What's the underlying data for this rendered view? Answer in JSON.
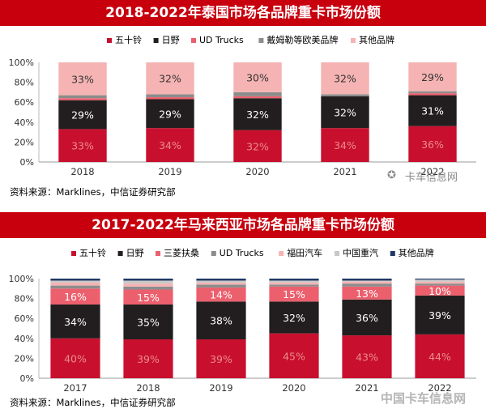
{
  "chart_data": [
    {
      "type": "bar",
      "stacked": true,
      "title": "2018-2022年泰国市场各品牌重卡市场份额",
      "categories": [
        "2018",
        "2019",
        "2020",
        "2021",
        "2022"
      ],
      "ylim": [
        0,
        100
      ],
      "yticks": [
        "0%",
        "20%",
        "40%",
        "60%",
        "80%",
        "100%"
      ],
      "legend_position": "top",
      "series": [
        {
          "name": "五十铃",
          "color": "#c8102e",
          "values": [
            33,
            34,
            32,
            34,
            36
          ],
          "labels": [
            "33%",
            "34%",
            "32%",
            "34%",
            "36%"
          ],
          "label_color": "#ec8a8f"
        },
        {
          "name": "日野",
          "color": "#221e1f",
          "values": [
            29,
            29,
            32,
            32,
            31
          ],
          "labels": [
            "29%",
            "29%",
            "32%",
            "32%",
            "31%"
          ],
          "label_color": "#ffffff"
        },
        {
          "name": "UD Trucks",
          "color": "#ec5f6d",
          "values": [
            2,
            2,
            2,
            0,
            2
          ],
          "labels": [],
          "label_color": "#222222"
        },
        {
          "name": "戴姆勒等欧美品牌",
          "color": "#8c8c8c",
          "values": [
            3,
            3,
            4,
            2,
            2
          ],
          "labels": [],
          "label_color": "#222222"
        },
        {
          "name": "其他品牌",
          "color": "#f5b3b3",
          "values": [
            33,
            32,
            30,
            32,
            29
          ],
          "labels": [
            "33%",
            "32%",
            "30%",
            "32%",
            "29%"
          ],
          "label_color": "#333333"
        }
      ],
      "source": "资料来源：Marklines，中信证券研究部"
    },
    {
      "type": "bar",
      "stacked": true,
      "title": "2017-2022年马来西亚市场各品牌重卡市场份额",
      "categories": [
        "2017",
        "2018",
        "2019",
        "2020",
        "2021",
        "2022"
      ],
      "ylim": [
        0,
        100
      ],
      "yticks": [
        "0%",
        "20%",
        "40%",
        "60%",
        "80%",
        "100%"
      ],
      "legend_position": "top",
      "series": [
        {
          "name": "五十铃",
          "color": "#c8102e",
          "values": [
            40,
            39,
            39,
            45,
            43,
            44
          ],
          "labels": [
            "40%",
            "39%",
            "39%",
            "45%",
            "43%",
            "44%"
          ],
          "label_color": "#ec8a8f"
        },
        {
          "name": "日野",
          "color": "#221e1f",
          "values": [
            34,
            35,
            38,
            32,
            36,
            39
          ],
          "labels": [
            "34%",
            "35%",
            "38%",
            "32%",
            "36%",
            "39%"
          ],
          "label_color": "#ffffff"
        },
        {
          "name": "三菱扶桑",
          "color": "#ec5f6d",
          "values": [
            16,
            15,
            14,
            15,
            13,
            10
          ],
          "labels": [
            "16%",
            "15%",
            "14%",
            "15%",
            "13%",
            "10%"
          ],
          "label_color": "#ffffff"
        },
        {
          "name": "UD Trucks",
          "color": "#8c8c8c",
          "values": [
            3,
            3,
            3,
            2,
            3,
            2
          ],
          "labels": [],
          "label_color": "#222222"
        },
        {
          "name": "福田汽车",
          "color": "#f5b3b3",
          "values": [
            3,
            3,
            2,
            2,
            2,
            2
          ],
          "labels": [],
          "label_color": "#222222"
        },
        {
          "name": "中国重汽",
          "color": "#c8c8c8",
          "values": [
            2,
            3,
            2,
            2,
            1,
            2
          ],
          "labels": [],
          "label_color": "#222222"
        },
        {
          "name": "其他品牌",
          "color": "#1f3864",
          "values": [
            2,
            2,
            2,
            2,
            2,
            1
          ],
          "labels": [],
          "label_color": "#ffffff"
        }
      ],
      "source": "资料来源：Marklines，中信证券研究部"
    }
  ],
  "watermarks": {
    "top": "卡车信息网",
    "bottom": "中国卡车信息网"
  }
}
